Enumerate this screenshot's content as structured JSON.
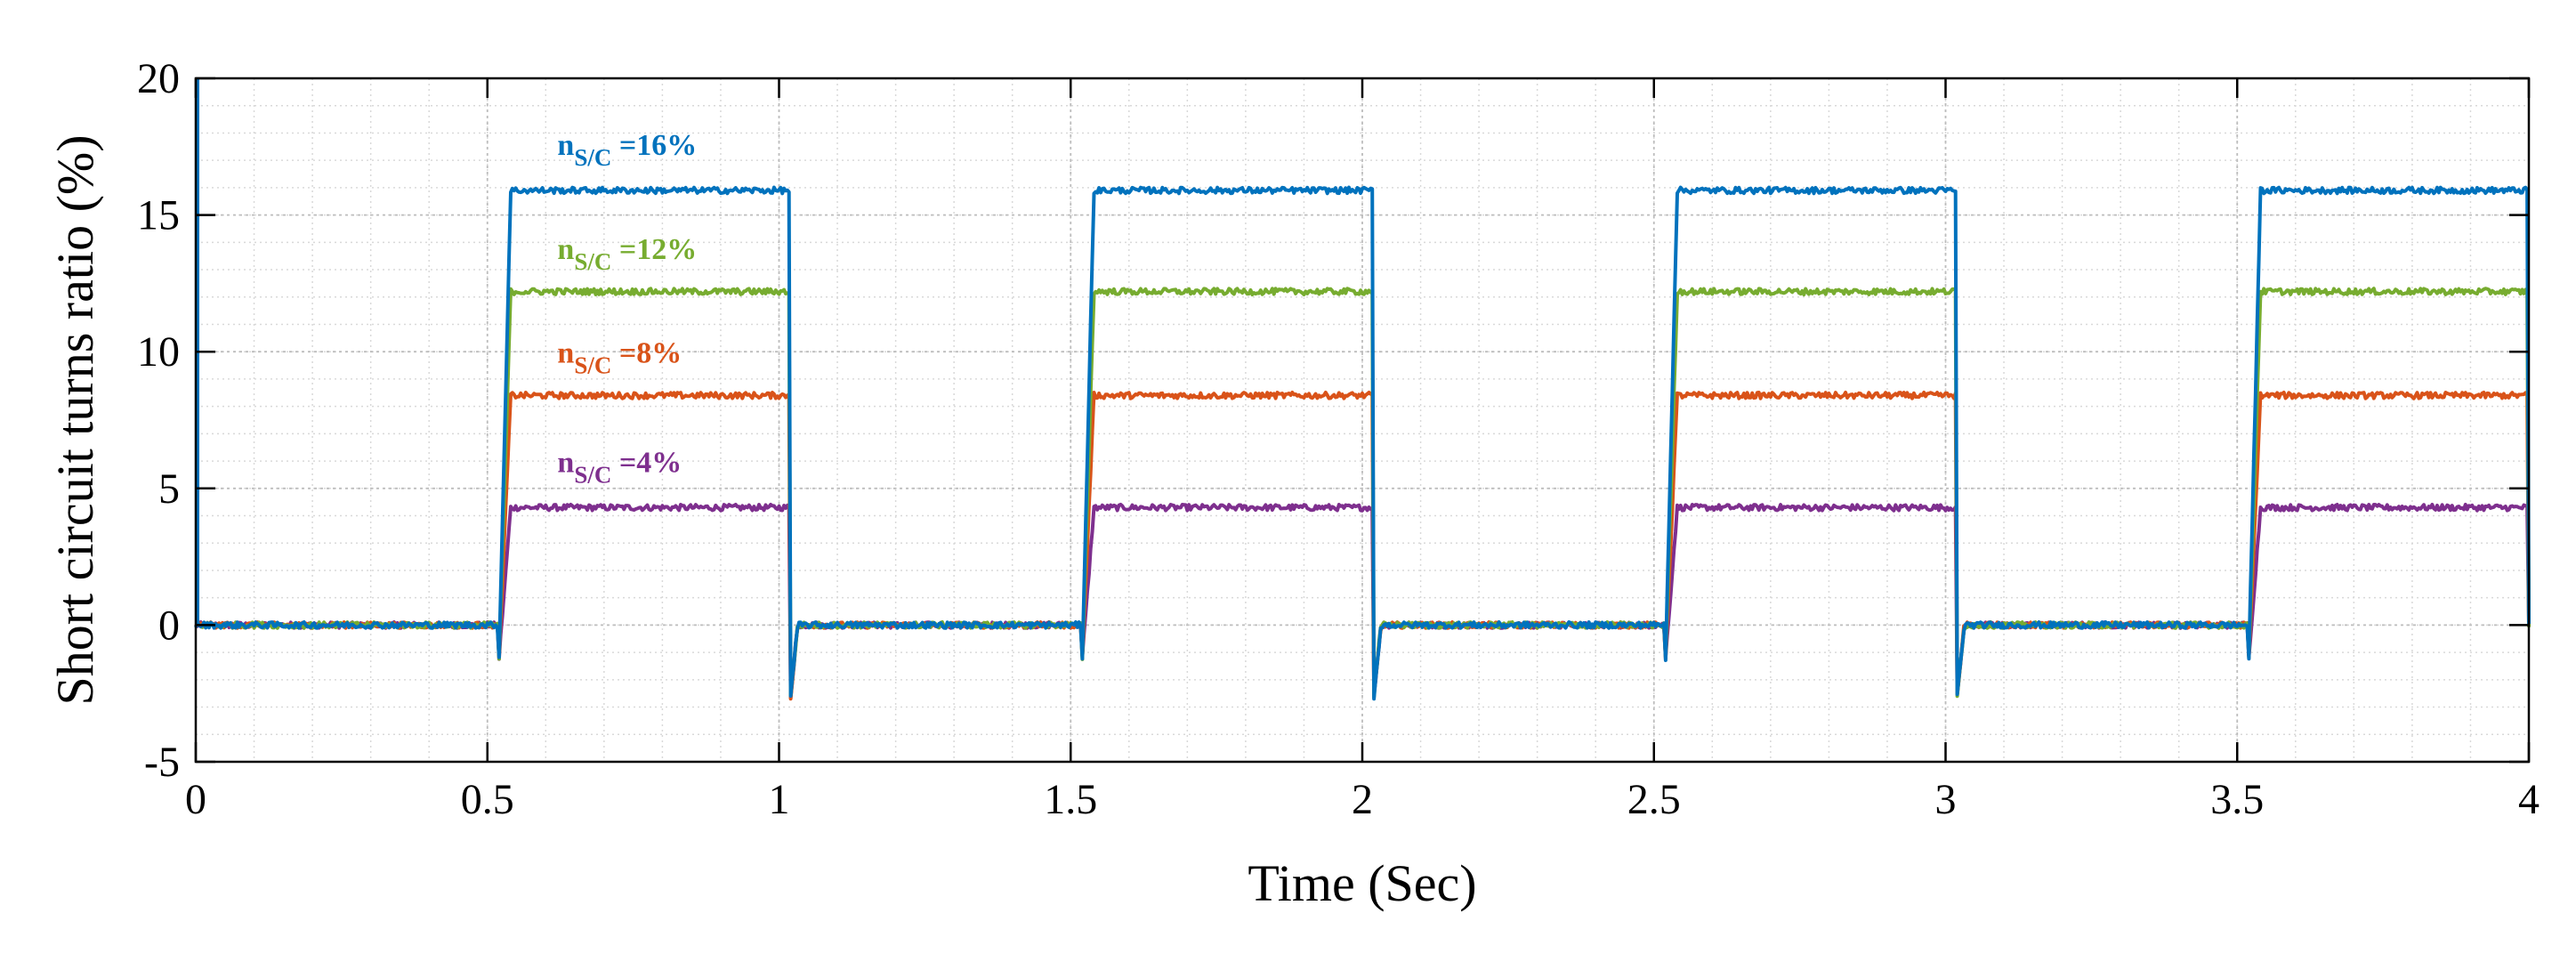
{
  "chart_data": {
    "type": "line",
    "xlabel": "Time (Sec)",
    "ylabel": "Short circuit turns ratio (%)",
    "xlim": [
      0,
      4
    ],
    "ylim": [
      -5,
      20
    ],
    "xticks": [
      0,
      0.5,
      1,
      1.5,
      2,
      2.5,
      3,
      3.5,
      4
    ],
    "xtick_labels": [
      "0",
      "0.5",
      "1",
      "1.5",
      "2",
      "2.5",
      "3",
      "3.5",
      "4"
    ],
    "yticks": [
      -5,
      0,
      5,
      10,
      15,
      20
    ],
    "ytick_labels": [
      "-5",
      "0",
      "5",
      "10",
      "15",
      "20"
    ],
    "grid": "major and minor, dotted",
    "fault_on_intervals": [
      [
        0.52,
        1.02
      ],
      [
        1.52,
        2.02
      ],
      [
        2.52,
        3.02
      ],
      [
        3.52,
        4.0
      ]
    ],
    "series": [
      {
        "name": "nS/C =4%",
        "color": "#7e2f8e",
        "on_level": 4.3,
        "off_level": 0
      },
      {
        "name": "nS/C =8%",
        "color": "#d95319",
        "on_level": 8.4,
        "off_level": 0
      },
      {
        "name": "nS/C =12%",
        "color": "#77ac30",
        "on_level": 12.2,
        "off_level": 0
      },
      {
        "name": "nS/C =16%",
        "color": "#0072bd",
        "on_level": 15.9,
        "off_level": 0
      }
    ],
    "annotations": [
      {
        "main": "n",
        "sub": "S/C",
        "value": " =16%",
        "color": "#0072bd",
        "x": 0.62,
        "y": 17.2
      },
      {
        "main": "n",
        "sub": "S/C",
        "value": " =12%",
        "color": "#77ac30",
        "x": 0.62,
        "y": 13.4
      },
      {
        "main": "n",
        "sub": "S/C",
        "value": " =8%",
        "color": "#d95319",
        "x": 0.62,
        "y": 9.6
      },
      {
        "main": "n",
        "sub": "S/C",
        "value": " =4%",
        "color": "#7e2f8e",
        "x": 0.62,
        "y": 5.6
      }
    ]
  }
}
